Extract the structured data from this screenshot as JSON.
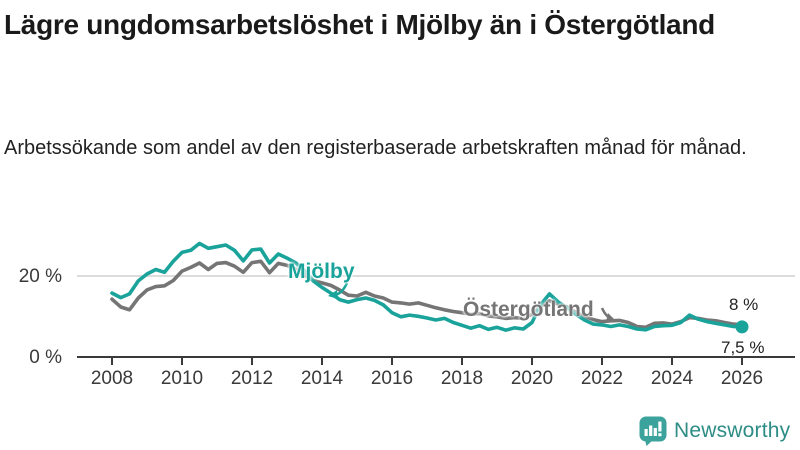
{
  "header": {
    "title": "Lägre ungdomsarbetslöshet i Mjölby än i Östergötland",
    "subtitle": "Arbetssökande som andel av den registerbaserade arbetskraften månad för månad."
  },
  "chart_data": {
    "type": "line",
    "title": "Lägre ungdomsarbetslöshet i Mjölby än i Östergötland",
    "subtitle": "Arbetssökande som andel av den registerbaserade arbetskraften månad för månad.",
    "x_start": 2008,
    "x_end": 2026,
    "points_per_year": 4,
    "xticks": [
      "2008",
      "2010",
      "2012",
      "2014",
      "2016",
      "2018",
      "2020",
      "2022",
      "2024",
      "2026"
    ],
    "yticks": [
      {
        "value": 0,
        "label": "0 %"
      },
      {
        "value": 20,
        "label": "20 %"
      }
    ],
    "ylim": [
      0,
      30
    ],
    "grid": "single horizontal gridline at 20 %",
    "legend_position": "inline labels on lines",
    "unit": "%",
    "series": [
      {
        "name": "Mjölby",
        "color": "#1aa39a",
        "values": [
          15.8,
          14.7,
          15.6,
          18.8,
          20.5,
          21.6,
          20.9,
          23.6,
          25.8,
          26.3,
          28.0,
          26.8,
          27.2,
          27.6,
          26.3,
          23.7,
          26.4,
          26.6,
          23.2,
          25.4,
          24.4,
          23.2,
          21.3,
          18.8,
          17.2,
          15.8,
          14.2,
          13.6,
          14.2,
          14.6,
          14.0,
          12.9,
          11.0,
          10.0,
          10.4,
          10.1,
          9.7,
          9.2,
          9.6,
          8.6,
          7.9,
          7.2,
          7.8,
          6.9,
          7.4,
          6.7,
          7.3,
          7.0,
          8.6,
          13.0,
          15.6,
          13.6,
          12.2,
          10.6,
          9.2,
          8.2,
          8.0,
          7.6,
          8.0,
          7.6,
          7.0,
          6.8,
          7.6,
          7.8,
          7.9,
          8.6,
          10.4,
          9.4,
          8.8,
          8.4,
          8.0,
          7.6,
          7.5
        ]
      },
      {
        "name": "Östergötland",
        "color": "#757575",
        "values": [
          14.3,
          12.4,
          11.7,
          14.6,
          16.6,
          17.4,
          17.6,
          18.9,
          21.2,
          22.1,
          23.2,
          21.6,
          23.1,
          23.3,
          22.4,
          20.9,
          23.3,
          23.6,
          20.8,
          23.1,
          22.6,
          21.7,
          20.2,
          18.9,
          18.3,
          17.7,
          16.6,
          15.3,
          15.1,
          16.0,
          15.1,
          14.6,
          13.6,
          13.4,
          13.1,
          13.4,
          12.8,
          12.2,
          11.7,
          11.3,
          11.0,
          10.6,
          10.8,
          10.2,
          10.0,
          9.6,
          9.8,
          9.6,
          10.6,
          12.6,
          13.9,
          13.1,
          12.4,
          11.1,
          10.1,
          9.3,
          8.8,
          9.0,
          9.1,
          8.6,
          7.6,
          7.4,
          8.4,
          8.5,
          8.2,
          8.8,
          9.8,
          9.6,
          9.2,
          9.0,
          8.6,
          8.2,
          8.0
        ]
      }
    ],
    "end_labels": [
      {
        "series": "Östergötland",
        "label": "8 %"
      },
      {
        "series": "Mjölby",
        "label": "7,5 %"
      }
    ],
    "end_marker": {
      "series": "Mjölby",
      "shape": "dot"
    }
  },
  "footer": {
    "brand": "Newsworthy"
  },
  "colors": {
    "mjolby": "#1aa39a",
    "ostergotland": "#757575",
    "grid": "#dcdcdc",
    "axis": "#3a3a3a",
    "logo": "#3ba39b",
    "logo_text": "#2d8c85"
  }
}
